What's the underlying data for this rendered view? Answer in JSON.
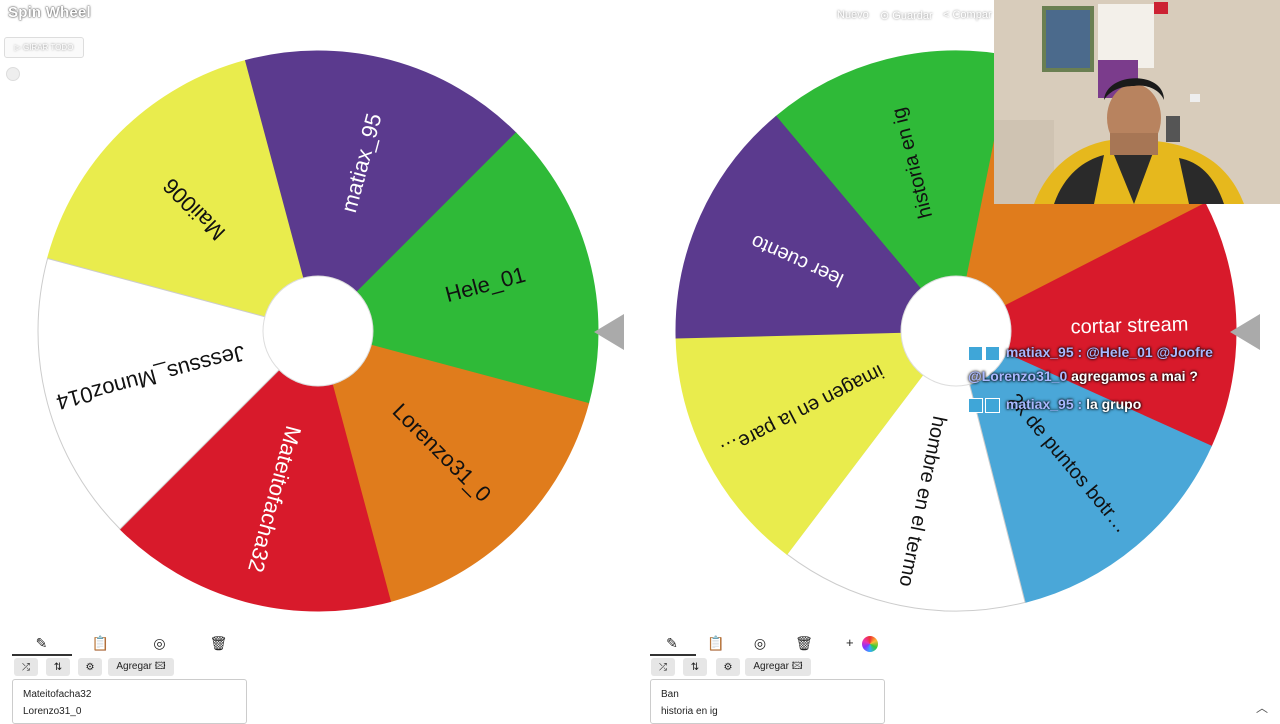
{
  "app": {
    "logo": "Spin Wheel"
  },
  "topnav": {
    "new": "Nuevo",
    "save": "⊙ Guardar",
    "share": "< Compar"
  },
  "spin_all": {
    "label": "▷ GIRAR TODO"
  },
  "left_wheel": {
    "segments": [
      {
        "label": "Maii006",
        "color": "#e9ec4d"
      },
      {
        "label": "matiax_95",
        "color": "#5b3a8e"
      },
      {
        "label": "Hele_01",
        "color": "#2fba38"
      },
      {
        "label": "Lorenzo31_0",
        "color": "#e07c1c"
      },
      {
        "label": "Mateitofacha32",
        "color": "#d81a2b"
      },
      {
        "label": "Jesssus_Munoz014",
        "color": "#ffffff"
      }
    ],
    "toolbar": {
      "add_label": "Agregar 🖾"
    },
    "entries": [
      "Mateitofacha32",
      "Lorenzo31_0"
    ]
  },
  "right_wheel": {
    "segments": [
      {
        "label": "historia en ig",
        "color": "#2fba38"
      },
      {
        "label": "",
        "color": "#e07c1c"
      },
      {
        "label": "cortar stream",
        "color": "#d81a2b"
      },
      {
        "label": "2k de puntos botr…",
        "color": "#4aa7d8"
      },
      {
        "label": "hombre en el termo",
        "color": "#ffffff"
      },
      {
        "label": "imagen en la pare…",
        "color": "#e9ec4d"
      },
      {
        "label": "leer cuento",
        "color": "#5b3a8e"
      }
    ],
    "toolbar": {
      "add_label": "Agregar 🖾",
      "plus": "+"
    },
    "entries": [
      "Ban",
      "historia en ig"
    ]
  },
  "chat": [
    {
      "user": "matiax_95 :",
      "text": "@Hele_01 @Joofre"
    },
    {
      "user": "@Lorenzo31_0",
      "text": "agregamos a mai ?"
    },
    {
      "user": "matiax_95 :",
      "text": "la grupo"
    }
  ],
  "colors": {
    "pointer": "#aaaaaa",
    "accent": "#333333"
  }
}
